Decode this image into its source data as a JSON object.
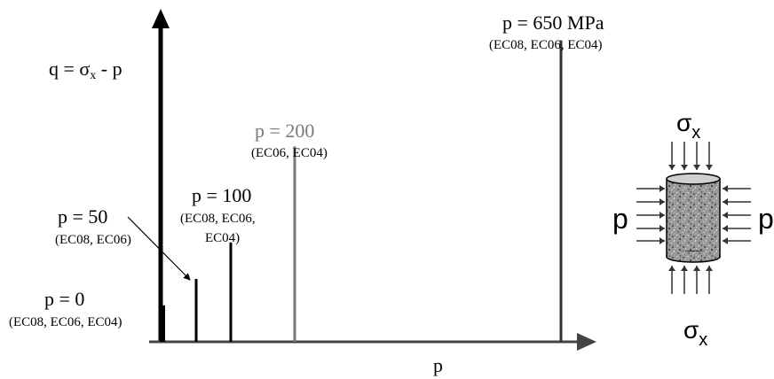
{
  "axes": {
    "y_label_prefix": "q = σ",
    "y_label_sub": "x",
    "y_label_suffix": " - p",
    "x_label": "p"
  },
  "paths": [
    {
      "id": "p0",
      "title": "p = 0",
      "tests": [
        "(EC08, EC06, EC04)"
      ],
      "color": "#000000",
      "p_value": 0,
      "q_fraction": 0.11
    },
    {
      "id": "p50",
      "title": "p = 50",
      "tests": [
        "(EC08, EC06)"
      ],
      "color": "#000000",
      "p_value": 50,
      "q_fraction": 0.19
    },
    {
      "id": "p100",
      "title": "p = 100",
      "tests": [
        "(EC08, EC06,",
        "EC04)"
      ],
      "color": "#000000",
      "p_value": 100,
      "q_fraction": 0.3
    },
    {
      "id": "p200",
      "title": "p = 200",
      "tests": [
        "(EC06, EC04)"
      ],
      "color": "#7a7a7a",
      "p_value": 200,
      "q_fraction": 0.59
    },
    {
      "id": "p650",
      "title": "p = 650 MPa",
      "tests": [
        "(EC08, EC06, EC04)"
      ],
      "color": "#333333",
      "p_value": 650,
      "q_fraction": 0.91
    }
  ],
  "specimen": {
    "axial_label_prefix": "σ",
    "axial_label_sub": "x",
    "lateral_label": "p"
  }
}
